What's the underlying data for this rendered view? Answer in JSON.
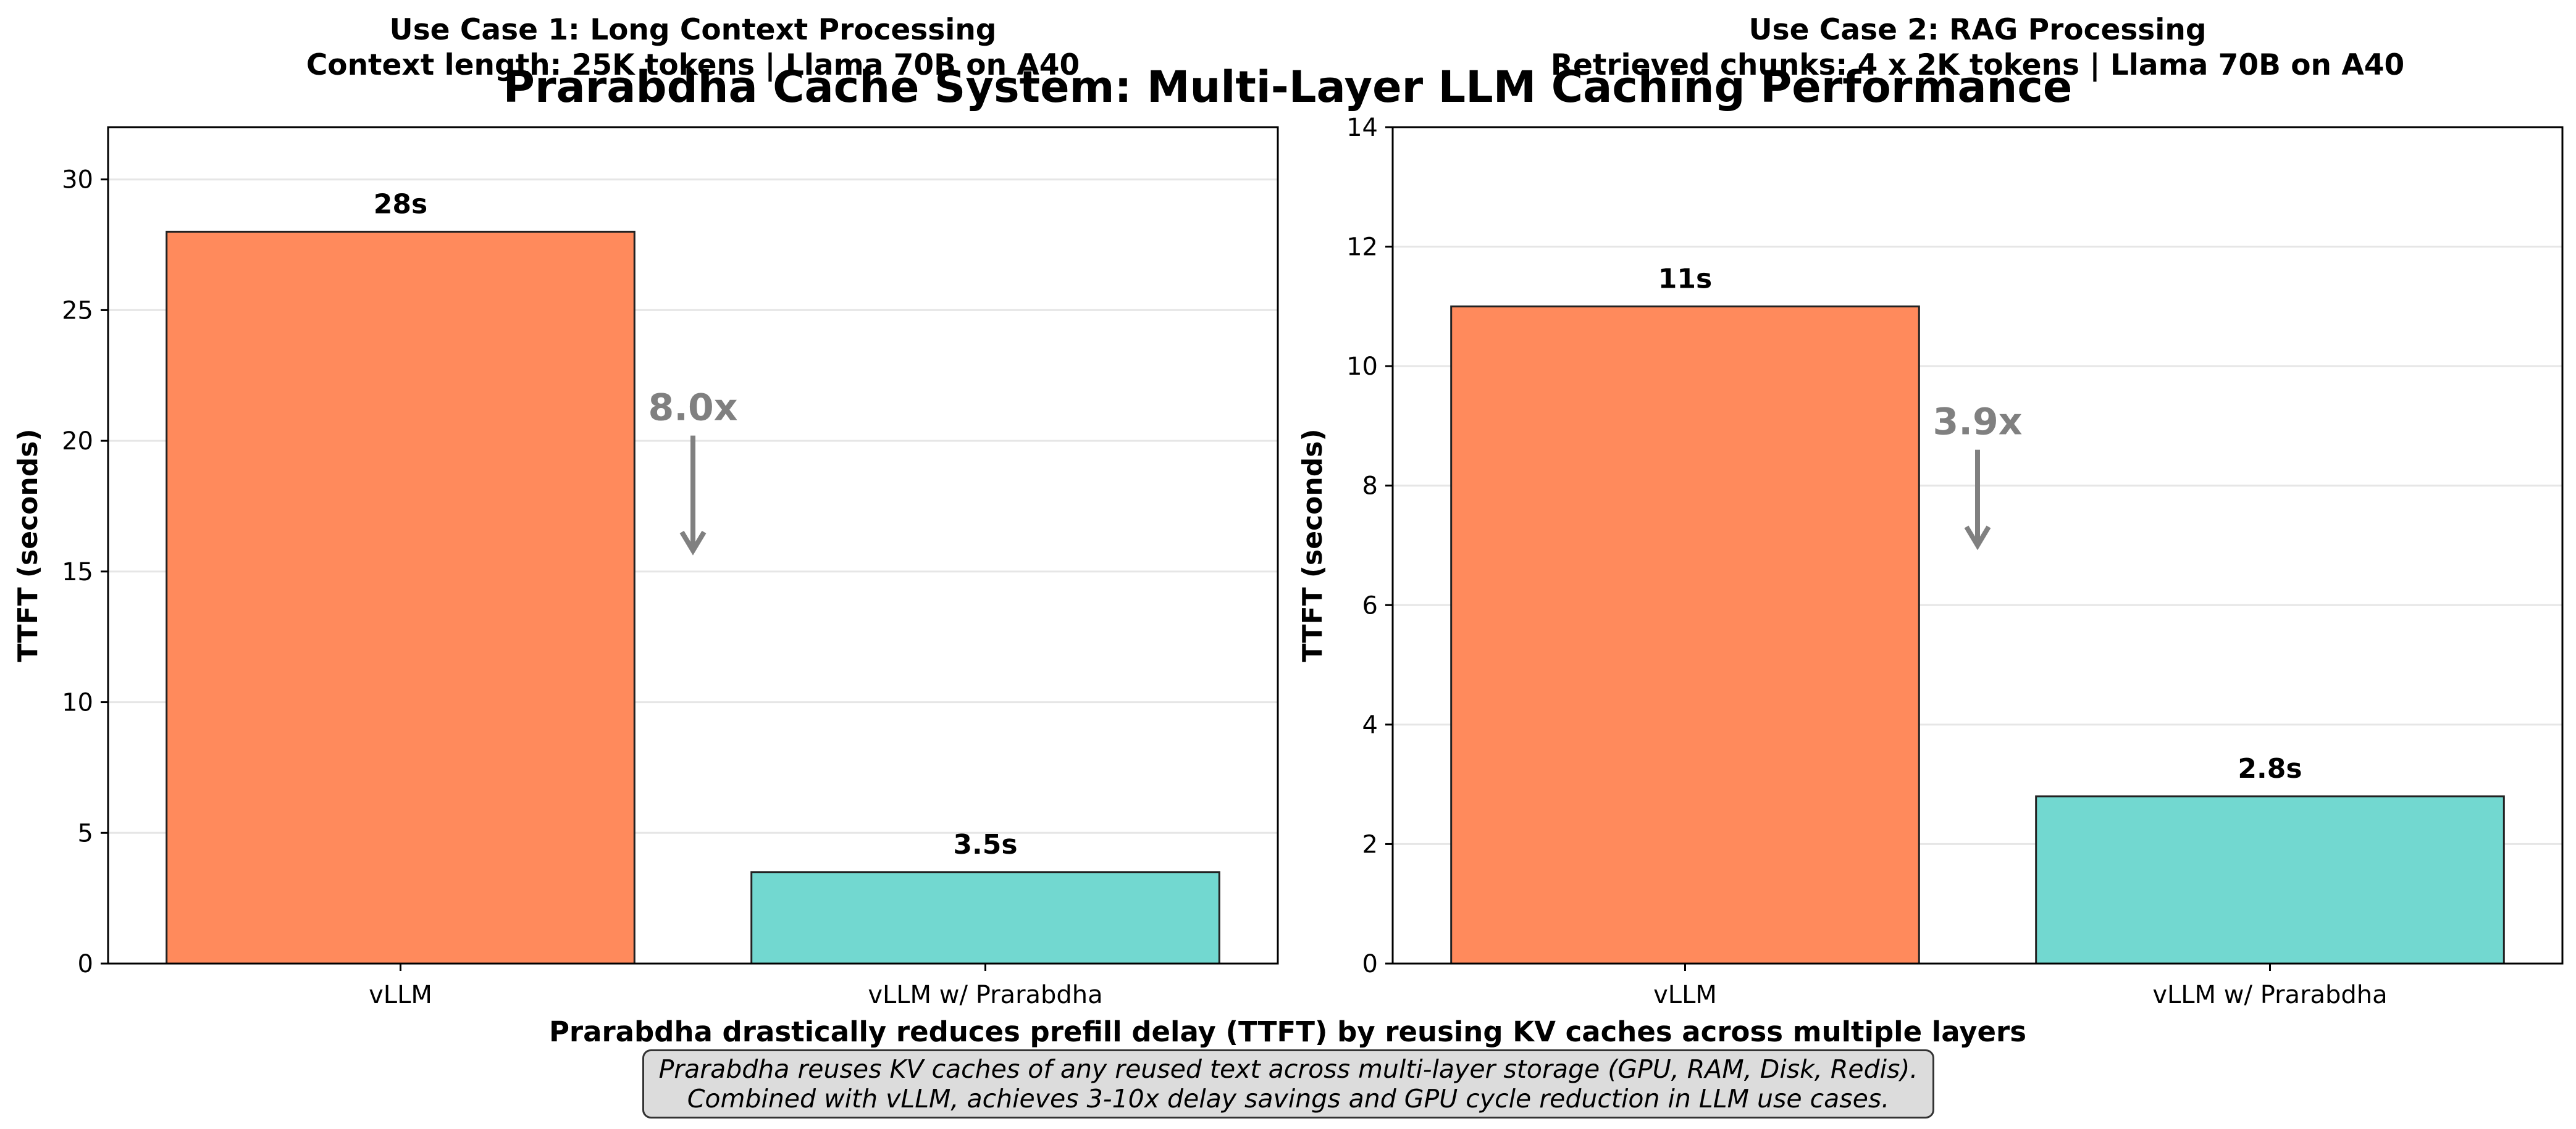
{
  "suptitle": "Prarabdha Cache System: Multi-Layer LLM Caching Performance",
  "footer_title": "Prarabdha drastically reduces prefill delay (TTFT) by reusing KV caches across multiple layers",
  "footer_note": {
    "line1": "Prarabdha reuses KV caches of any reused text across multi-layer storage (GPU, RAM, Disk, Redis).",
    "line2": "Combined with vLLM, achieves 3-10x delay savings and GPU cycle reduction in LLM use cases."
  },
  "colors": {
    "vllm": "#ff8a5c",
    "prarabdha": "#72d8d0",
    "arrow": "#808080",
    "grid": "#e6e6e6"
  },
  "chart_data": [
    {
      "type": "bar",
      "title": "Use Case 1: Long Context Processing",
      "subtitle": "Context length: 25K tokens | Llama 70B on A40",
      "ylabel": "TTFT (seconds)",
      "xlabel": "",
      "categories": [
        "vLLM",
        "vLLM w/ Prarabdha"
      ],
      "values": [
        28,
        3.5
      ],
      "value_labels": [
        "28s",
        "3.5s"
      ],
      "ylim": [
        0,
        32
      ],
      "yticks": [
        0,
        5,
        10,
        15,
        20,
        25,
        30
      ],
      "grid": true,
      "annotation": {
        "text": "8.0x",
        "arrow_from": 20.2,
        "arrow_to": 15.8
      }
    },
    {
      "type": "bar",
      "title": "Use Case 2: RAG Processing",
      "subtitle": "Retrieved chunks: 4 x 2K tokens | Llama 70B on A40",
      "ylabel": "TTFT (seconds)",
      "xlabel": "",
      "categories": [
        "vLLM",
        "vLLM w/ Prarabdha"
      ],
      "values": [
        11,
        2.8
      ],
      "value_labels": [
        "11s",
        "2.8s"
      ],
      "ylim": [
        0,
        14
      ],
      "yticks": [
        0,
        2,
        4,
        6,
        8,
        10,
        12,
        14
      ],
      "grid": true,
      "annotation": {
        "text": "3.9x",
        "arrow_from": 8.6,
        "arrow_to": 7.0
      }
    }
  ]
}
